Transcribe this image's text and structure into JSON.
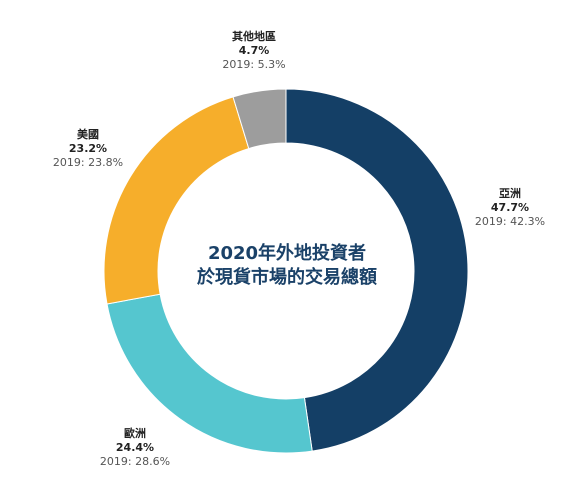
{
  "chart_data": {
    "type": "pie",
    "donut": true,
    "title_lines": [
      "2020年外地投資者",
      "於現貨市場的交易總額"
    ],
    "slices": [
      {
        "name": "亞洲",
        "value": 47.7,
        "value_label": "47.7%",
        "previous_label": "2019: 42.3%",
        "color": "#143f66"
      },
      {
        "name": "歐洲",
        "value": 24.4,
        "value_label": "24.4%",
        "previous_label": "2019: 28.6%",
        "color": "#55c6cf"
      },
      {
        "name": "美國",
        "value": 23.2,
        "value_label": "23.2%",
        "previous_label": "2019: 23.8%",
        "color": "#f6ae2b"
      },
      {
        "name": "其他地區",
        "value": 4.7,
        "value_label": "4.7%",
        "previous_label": "2019: 5.3%",
        "color": "#9d9d9d"
      }
    ]
  }
}
